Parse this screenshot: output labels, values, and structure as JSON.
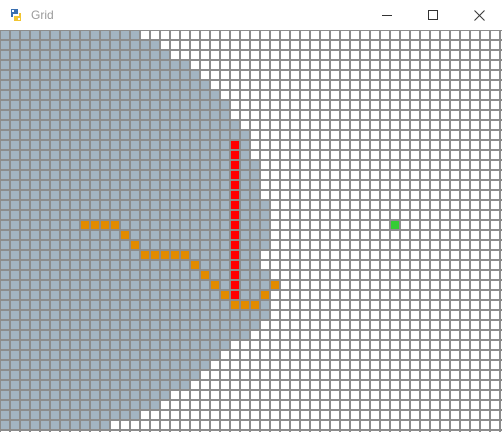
{
  "window": {
    "title": "Grid",
    "icon": "python-icon",
    "controls": [
      "minimize-icon",
      "maximize-icon",
      "close-icon"
    ]
  },
  "grid": {
    "colors": {
      "empty": "#ffffff",
      "line": "#8c8c8c",
      "explored": "#a3b4c2",
      "wall": "#ff0000",
      "path": "#e38b00",
      "goal": "#33cc33"
    },
    "wall_cells": [
      [
        23,
        11
      ],
      [
        23,
        12
      ],
      [
        23,
        13
      ],
      [
        23,
        14
      ],
      [
        23,
        15
      ],
      [
        23,
        16
      ],
      [
        23,
        17
      ],
      [
        23,
        18
      ],
      [
        23,
        19
      ],
      [
        23,
        20
      ],
      [
        23,
        21
      ],
      [
        23,
        22
      ],
      [
        23,
        23
      ],
      [
        23,
        24
      ],
      [
        23,
        25
      ],
      [
        23,
        26
      ]
    ],
    "path_cells": [
      [
        8,
        19
      ],
      [
        9,
        19
      ],
      [
        10,
        19
      ],
      [
        11,
        19
      ],
      [
        12,
        20
      ],
      [
        13,
        21
      ],
      [
        14,
        22
      ],
      [
        15,
        22
      ],
      [
        16,
        22
      ],
      [
        17,
        22
      ],
      [
        18,
        22
      ],
      [
        19,
        23
      ],
      [
        20,
        24
      ],
      [
        21,
        25
      ],
      [
        22,
        26
      ],
      [
        23,
        27
      ],
      [
        24,
        27
      ],
      [
        25,
        27
      ],
      [
        26,
        26
      ],
      [
        27,
        25
      ]
    ],
    "goal_cell": [
      39,
      19
    ]
  }
}
